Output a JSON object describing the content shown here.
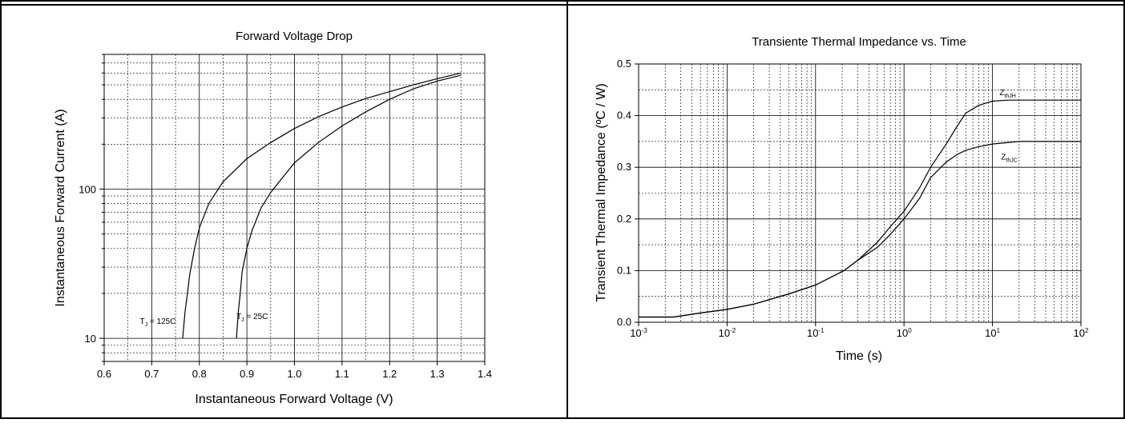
{
  "chart_data": [
    {
      "type": "line",
      "title": "Forward Voltage Drop",
      "xlabel": "Instantaneous Forward Voltage (V)",
      "ylabel": "Instantaneous Forward Current (A)",
      "xscale": "linear",
      "yscale": "log",
      "xlim": [
        0.6,
        1.4
      ],
      "ylim": [
        7,
        800
      ],
      "grid": true,
      "x_ticks": [
        "0.6",
        "0.7",
        "0.8",
        "0.9",
        "1.0",
        "1.1",
        "1.2",
        "1.3",
        "1.4"
      ],
      "y_ticks": [
        "10",
        "100"
      ],
      "series": [
        {
          "name": "TJ = 125C",
          "label_main": "T",
          "label_sub": "J",
          "label_rest": " = 125C",
          "x": [
            0.765,
            0.77,
            0.775,
            0.78,
            0.79,
            0.8,
            0.82,
            0.85,
            0.9,
            0.95,
            1.0,
            1.05,
            1.1,
            1.15,
            1.2,
            1.25,
            1.3,
            1.35
          ],
          "y": [
            10,
            15,
            20,
            27,
            40,
            55,
            80,
            112,
            160,
            205,
            255,
            305,
            355,
            405,
            450,
            500,
            550,
            600
          ]
        },
        {
          "name": "TJ = 25C",
          "label_main": "T",
          "label_sub": "J",
          "label_rest": " = 25C",
          "x": [
            0.878,
            0.882,
            0.886,
            0.89,
            0.9,
            0.91,
            0.93,
            0.95,
            0.98,
            1.0,
            1.05,
            1.1,
            1.15,
            1.2,
            1.25,
            1.3,
            1.35
          ],
          "y": [
            10,
            15,
            20,
            28,
            40,
            52,
            75,
            95,
            125,
            150,
            205,
            265,
            330,
            400,
            470,
            530,
            580
          ]
        }
      ]
    },
    {
      "type": "line",
      "title": "Transiente Thermal Impedance vs. Time",
      "xlabel": "Time (s)",
      "ylabel": "Transient Thermal Impedance (ºC / W)",
      "xscale": "log",
      "yscale": "linear",
      "xlim": [
        0.001,
        100
      ],
      "ylim": [
        0,
        0.5
      ],
      "grid": true,
      "x_ticks": [
        {
          "base": "10",
          "exp": "-3"
        },
        {
          "base": "10",
          "exp": "-2"
        },
        {
          "base": "10",
          "exp": "-1"
        },
        {
          "base": "10",
          "exp": "0"
        },
        {
          "base": "10",
          "exp": "1"
        },
        {
          "base": "10",
          "exp": "2"
        }
      ],
      "y_ticks": [
        "0.0",
        "0.1",
        "0.2",
        "0.3",
        "0.4",
        "0.5"
      ],
      "series": [
        {
          "name": "ZthJH",
          "label_main": "Z",
          "label_sub": "thJH",
          "x": [
            0.001,
            0.0025,
            0.005,
            0.01,
            0.02,
            0.05,
            0.1,
            0.21,
            0.3,
            0.5,
            0.7,
            1.0,
            1.5,
            2.0,
            3.0,
            4.0,
            5.0,
            7.0,
            10,
            15,
            20,
            50,
            100
          ],
          "y": [
            0.01,
            0.01,
            0.018,
            0.025,
            0.035,
            0.055,
            0.072,
            0.1,
            0.12,
            0.155,
            0.185,
            0.215,
            0.26,
            0.3,
            0.345,
            0.38,
            0.405,
            0.42,
            0.428,
            0.43,
            0.43,
            0.43,
            0.43
          ]
        },
        {
          "name": "ZthJC",
          "label_main": "Z",
          "label_sub": "thJC",
          "x": [
            0.001,
            0.0025,
            0.005,
            0.01,
            0.02,
            0.05,
            0.1,
            0.21,
            0.3,
            0.5,
            0.7,
            1.0,
            1.5,
            2.0,
            3.0,
            4.0,
            5.0,
            7.0,
            10,
            20,
            50,
            100
          ],
          "y": [
            0.01,
            0.01,
            0.018,
            0.025,
            0.035,
            0.055,
            0.072,
            0.1,
            0.12,
            0.145,
            0.17,
            0.2,
            0.24,
            0.28,
            0.31,
            0.325,
            0.333,
            0.34,
            0.345,
            0.35,
            0.35,
            0.35
          ]
        }
      ]
    }
  ]
}
